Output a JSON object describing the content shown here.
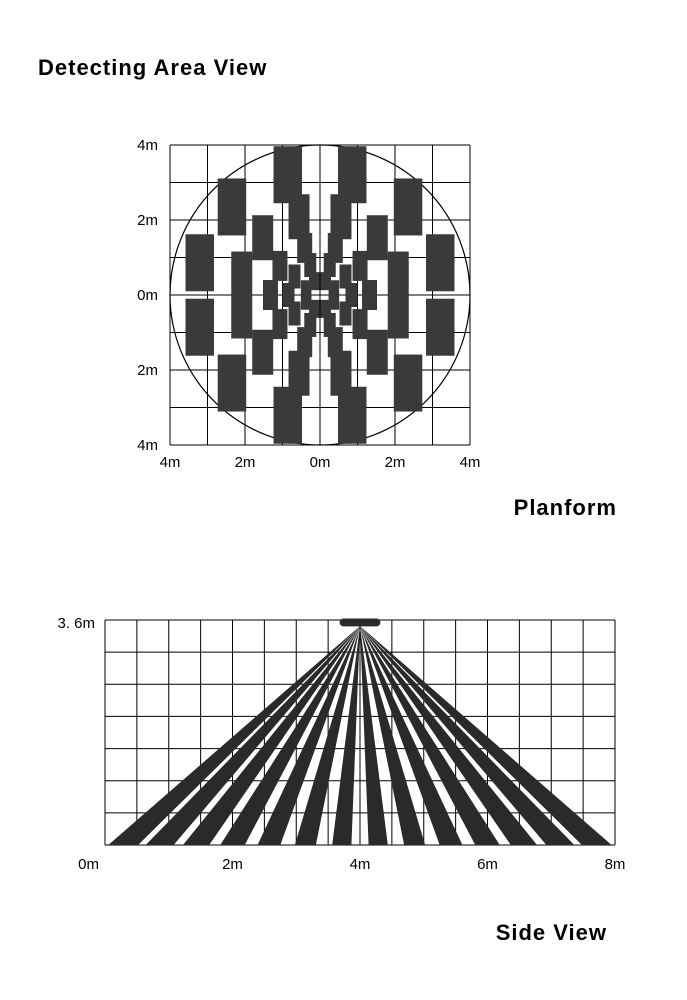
{
  "title": "Detecting  Area View",
  "planform": {
    "label": "Planform",
    "grid": {
      "cols": 8,
      "rows": 8,
      "x_labels": [
        "4m",
        "2m",
        "0m",
        "2m",
        "4m"
      ],
      "y_labels": [
        "4m",
        "2m",
        "0m",
        "2m",
        "4m"
      ],
      "grid_color": "#000000",
      "circle_color": "#000000",
      "background_color": "#ffffff",
      "label_fontsize": 15
    },
    "block_fill": "#3a3a3a",
    "rings": [
      {
        "count": 12,
        "radius": 0.83,
        "w": 0.095,
        "h": 0.19
      },
      {
        "count": 12,
        "radius": 0.54,
        "w": 0.07,
        "h": 0.15
      },
      {
        "count": 10,
        "radius": 0.33,
        "w": 0.05,
        "h": 0.1
      },
      {
        "count": 10,
        "radius": 0.21,
        "w": 0.04,
        "h": 0.08
      },
      {
        "count": 8,
        "radius": 0.1,
        "w": 0.035,
        "h": 0.06
      }
    ]
  },
  "sideview": {
    "label": "Side View",
    "top_label": "3. 6m",
    "bottom_label": "0m",
    "x_labels": [
      "2m",
      "4m",
      "6m",
      "8m"
    ],
    "grid": {
      "cols": 16,
      "rows": 7,
      "grid_color": "#000000",
      "label_fontsize": 15
    },
    "sensor": {
      "w": 0.08,
      "h": 0.022,
      "fill": "#2a2a2a",
      "radius": 4
    },
    "beam_fill": "#2a2a2a",
    "beams": {
      "count": 14,
      "base_halfwidth": 0.018,
      "spread": 1.0
    }
  }
}
